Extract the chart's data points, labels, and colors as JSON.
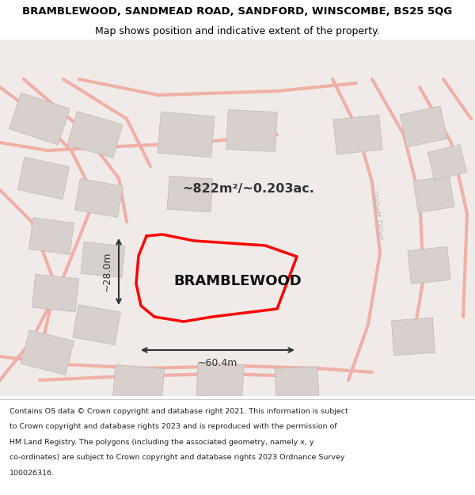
{
  "title_line1": "BRAMBLEWOOD, SANDMEAD ROAD, SANDFORD, WINSCOMBE, BS25 5QG",
  "title_line2": "Map shows position and indicative extent of the property.",
  "property_name": "BRAMBLEWOOD",
  "area_label": "~822m²/~0.203ac.",
  "width_label": "~60.4m",
  "height_label": "~28.0m",
  "footer_lines": [
    "Contains OS data © Crown copyright and database right 2021. This information is subject",
    "to Crown copyright and database rights 2023 and is reproduced with the permission of",
    "HM Land Registry. The polygons (including the associated geometry, namely x, y",
    "co-ordinates) are subject to Crown copyright and database rights 2023 Ordnance Survey",
    "100026316."
  ],
  "map_bg": "#f0ebe8",
  "red_color": "#ff0000",
  "road_color": "#f0b0a8",
  "building_face": "#d8d0cc",
  "building_edge": "#c0b8b4"
}
